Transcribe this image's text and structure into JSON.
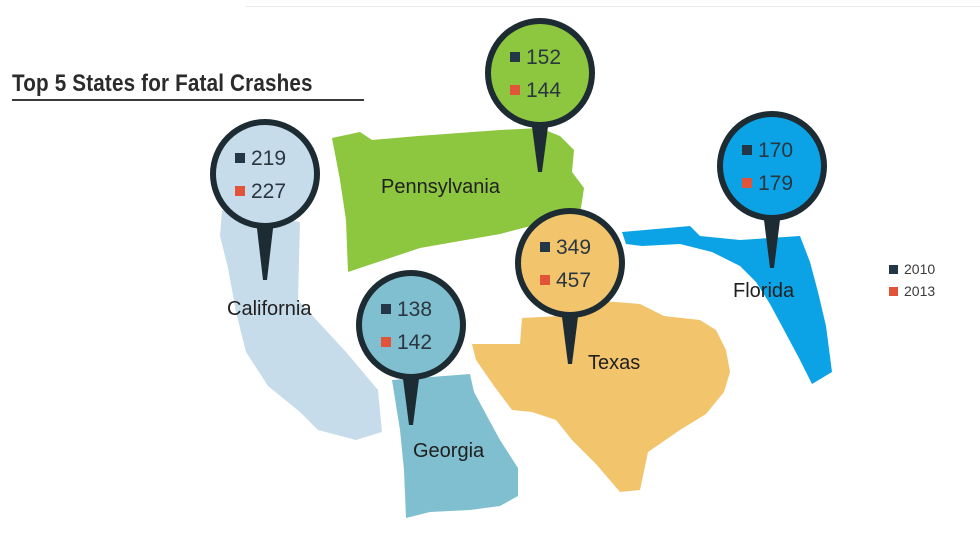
{
  "chart_data": {
    "type": "map",
    "title": "Top 5 States for Fatal Crashes",
    "legend": {
      "placement": "right",
      "entries": [
        "2010",
        "2013"
      ]
    },
    "series": [
      {
        "name": "2010",
        "color": "#243746"
      },
      {
        "name": "2013",
        "color": "#e2543a"
      }
    ],
    "states": [
      {
        "name": "California",
        "v2010": 219,
        "v2013": 227,
        "fill": "#c7dcea",
        "pin": "#c7dcea"
      },
      {
        "name": "Pennsylvania",
        "v2010": 152,
        "v2013": 144,
        "fill": "#8dc63f",
        "pin": "#8dc63f"
      },
      {
        "name": "Florida",
        "v2010": 170,
        "v2013": 179,
        "fill": "#0ba3e6",
        "pin": "#0ba3e6"
      },
      {
        "name": "Texas",
        "v2010": 349,
        "v2013": 457,
        "fill": "#f2c46c",
        "pin": "#f2c46c"
      },
      {
        "name": "Georgia",
        "v2010": 138,
        "v2013": 142,
        "fill": "#7fbfcf",
        "pin": "#7fbfcf"
      }
    ]
  }
}
